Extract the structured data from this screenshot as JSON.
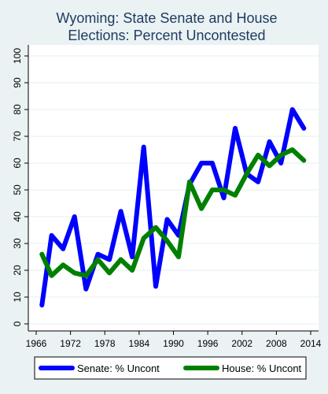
{
  "chart_data": {
    "type": "line",
    "title_lines": [
      "Wyoming: State Senate and House",
      "Elections: Percent Uncontested"
    ],
    "xlabel": "",
    "ylabel": "",
    "xlim": [
      1966,
      2014
    ],
    "ylim": [
      0,
      100
    ],
    "x_ticks": [
      1966,
      1972,
      1978,
      1984,
      1990,
      1996,
      2002,
      2008,
      2014
    ],
    "y_ticks": [
      0,
      10,
      20,
      30,
      40,
      50,
      60,
      70,
      80,
      90,
      100
    ],
    "grid": "horizontal",
    "legend_position": "bottom",
    "background_color": "#eaf2f3",
    "plot_background_color": "#ffffff",
    "title_color": "#1e3a5f",
    "series": [
      {
        "name": "Senate: % Uncont",
        "color": "#0000ff",
        "points": [
          [
            1967,
            7
          ],
          [
            1968.7,
            33
          ],
          [
            1970.7,
            28
          ],
          [
            1972.7,
            40
          ],
          [
            1974.7,
            13
          ],
          [
            1976.8,
            26
          ],
          [
            1978.8,
            24
          ],
          [
            1980.8,
            42
          ],
          [
            1982.8,
            25
          ],
          [
            1984.8,
            66
          ],
          [
            1986.9,
            14
          ],
          [
            1988.9,
            39
          ],
          [
            1990.9,
            33
          ],
          [
            1992.8,
            52
          ],
          [
            1994.9,
            60
          ],
          [
            1996.8,
            60
          ],
          [
            1998.8,
            47
          ],
          [
            2000.8,
            73
          ],
          [
            2002.8,
            56
          ],
          [
            2004.8,
            53
          ],
          [
            2006.8,
            68
          ],
          [
            2008.8,
            60
          ],
          [
            2010.8,
            80
          ],
          [
            2012.8,
            73
          ]
        ]
      },
      {
        "name": "House: % Uncont",
        "color": "#008000",
        "points": [
          [
            1967,
            26
          ],
          [
            1968.7,
            18
          ],
          [
            1970.7,
            22
          ],
          [
            1972.7,
            19
          ],
          [
            1974.7,
            18
          ],
          [
            1976.8,
            24
          ],
          [
            1978.8,
            19
          ],
          [
            1980.8,
            24
          ],
          [
            1982.8,
            20
          ],
          [
            1984.8,
            32
          ],
          [
            1986.9,
            36
          ],
          [
            1988.9,
            31
          ],
          [
            1990.9,
            25
          ],
          [
            1992.8,
            53
          ],
          [
            1994.9,
            43
          ],
          [
            1996.8,
            50
          ],
          [
            1998.8,
            50
          ],
          [
            2000.8,
            48
          ],
          [
            2002.8,
            56
          ],
          [
            2004.8,
            63
          ],
          [
            2006.8,
            59
          ],
          [
            2008.8,
            63
          ],
          [
            2010.8,
            65
          ],
          [
            2012.8,
            61
          ]
        ]
      }
    ]
  }
}
